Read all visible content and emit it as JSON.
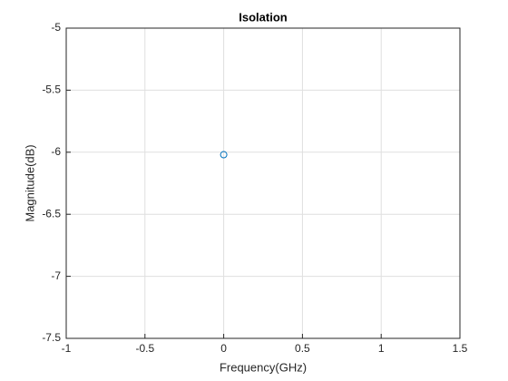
{
  "chart_data": {
    "type": "scatter",
    "title": "Isolation",
    "x_label": "Frequency(GHz)",
    "y_label": "Magnitude(dB)",
    "x": [
      0
    ],
    "values": [
      -6.02
    ],
    "color": "#0072bd",
    "xlim": [
      -1,
      1.5
    ],
    "xticks": [
      -1,
      -0.5,
      0,
      0.5,
      1,
      1.5
    ],
    "ylim": [
      -7.5,
      -5
    ],
    "yticks": [
      -7.5,
      -7,
      -6.5,
      -6,
      -5.5,
      -5
    ],
    "grid": true
  }
}
